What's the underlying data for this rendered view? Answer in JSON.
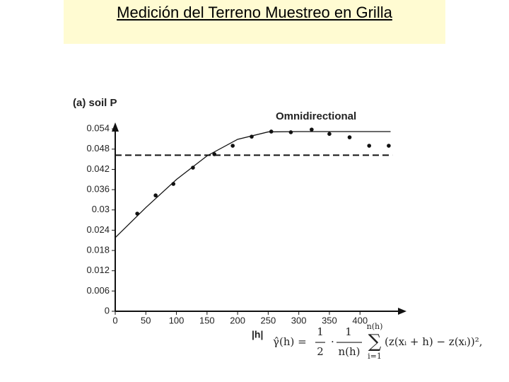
{
  "title": "Medición del Terreno Muestreo en Grilla",
  "chart_data": {
    "type": "scatter",
    "panel_label": "(a) soil P",
    "annotation": "Omnidirectional",
    "x_label": "|h|",
    "x": [
      36,
      66,
      95,
      127,
      162,
      192,
      223,
      255,
      287,
      321,
      350,
      383,
      415,
      447
    ],
    "values": [
      0.0289,
      0.0343,
      0.0377,
      0.0425,
      0.0465,
      0.049,
      0.0517,
      0.0532,
      0.053,
      0.0538,
      0.0525,
      0.0515,
      0.049,
      0.049
    ],
    "color": "#111111",
    "model": {
      "x": [
        0,
        50,
        100,
        150,
        200,
        250,
        300,
        350,
        400,
        450
      ],
      "values": [
        0.0218,
        0.0307,
        0.039,
        0.046,
        0.0509,
        0.0531,
        0.0532,
        0.0532,
        0.0532,
        0.0532
      ]
    },
    "reference_line": {
      "value": 0.0462,
      "x": [
        0,
        453
      ]
    },
    "xlim": [
      0,
      476
    ],
    "ylim": [
      0,
      0.0555
    ],
    "xticks": [
      0,
      50,
      100,
      150,
      200,
      250,
      300,
      350,
      400
    ],
    "yticks": [
      0,
      0.006,
      0.012,
      0.018,
      0.024,
      0.03,
      0.036,
      0.042,
      0.048,
      0.054
    ],
    "grid": false
  },
  "formula": {
    "lhs": "γ̂(h) =",
    "frac1_num": "1",
    "frac1_den": "2",
    "dot": "·",
    "frac2_num": "1",
    "frac2_den": "n(h)",
    "sum_top": "n(h)",
    "sum_symbol": "∑",
    "sum_bottom": "i=1",
    "body": "(z(xᵢ + h) − z(xᵢ))²,"
  }
}
